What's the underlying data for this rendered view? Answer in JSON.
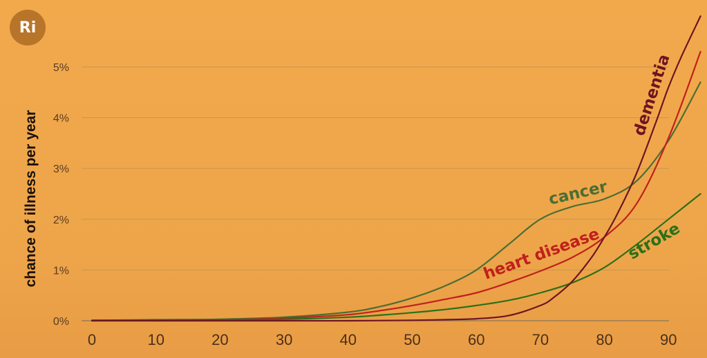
{
  "logo": {
    "text": "Ri"
  },
  "chart_data": {
    "type": "line",
    "title": "",
    "xlabel": "",
    "ylabel": "chance of illness per year",
    "xlim": [
      -4,
      95
    ],
    "ylim": [
      0,
      5.9
    ],
    "x_ticks": [
      0,
      10,
      20,
      30,
      40,
      50,
      60,
      70,
      80,
      90
    ],
    "y_ticks": [
      0,
      1,
      2,
      3,
      4,
      5
    ],
    "y_tick_labels": [
      "0%",
      "1%",
      "2%",
      "3%",
      "4%",
      "5%"
    ],
    "grid": true,
    "series": [
      {
        "name": "cancer",
        "color": "#4a6e34",
        "x": [
          0,
          10,
          20,
          30,
          40,
          45,
          50,
          55,
          60,
          65,
          70,
          75,
          80,
          85,
          90,
          95
        ],
        "y": [
          0.01,
          0.02,
          0.03,
          0.07,
          0.17,
          0.28,
          0.45,
          0.68,
          1.0,
          1.5,
          2.0,
          2.25,
          2.4,
          2.75,
          3.55,
          4.7
        ]
      },
      {
        "name": "heart disease",
        "color": "#c0201c",
        "x": [
          0,
          10,
          20,
          30,
          40,
          45,
          50,
          55,
          60,
          65,
          70,
          75,
          80,
          85,
          90,
          95
        ],
        "y": [
          0.01,
          0.01,
          0.02,
          0.05,
          0.12,
          0.2,
          0.3,
          0.42,
          0.55,
          0.75,
          0.98,
          1.25,
          1.65,
          2.3,
          3.6,
          5.3
        ]
      },
      {
        "name": "stroke",
        "color": "#2a7018",
        "x": [
          0,
          10,
          20,
          30,
          40,
          45,
          50,
          55,
          60,
          65,
          70,
          75,
          80,
          85,
          90,
          95
        ],
        "y": [
          0.01,
          0.01,
          0.02,
          0.03,
          0.07,
          0.11,
          0.16,
          0.22,
          0.3,
          0.4,
          0.55,
          0.75,
          1.05,
          1.5,
          2.0,
          2.5
        ]
      },
      {
        "name": "dementia",
        "color": "#6e1422",
        "x": [
          0,
          10,
          20,
          30,
          40,
          50,
          55,
          60,
          65,
          70,
          72,
          75,
          78,
          80,
          82,
          85,
          88,
          90,
          92,
          95
        ],
        "y": [
          0.0,
          0.0,
          0.0,
          0.0,
          0.0,
          0.01,
          0.02,
          0.04,
          0.1,
          0.3,
          0.45,
          0.78,
          1.25,
          1.65,
          2.1,
          2.9,
          3.9,
          4.6,
          5.2,
          6.0
        ]
      }
    ],
    "annotations": [
      {
        "series": "dementia",
        "text": "dementia"
      },
      {
        "series": "cancer",
        "text": "cancer"
      },
      {
        "series": "heart disease",
        "text": "heart disease"
      },
      {
        "series": "stroke",
        "text": "stroke"
      }
    ]
  }
}
